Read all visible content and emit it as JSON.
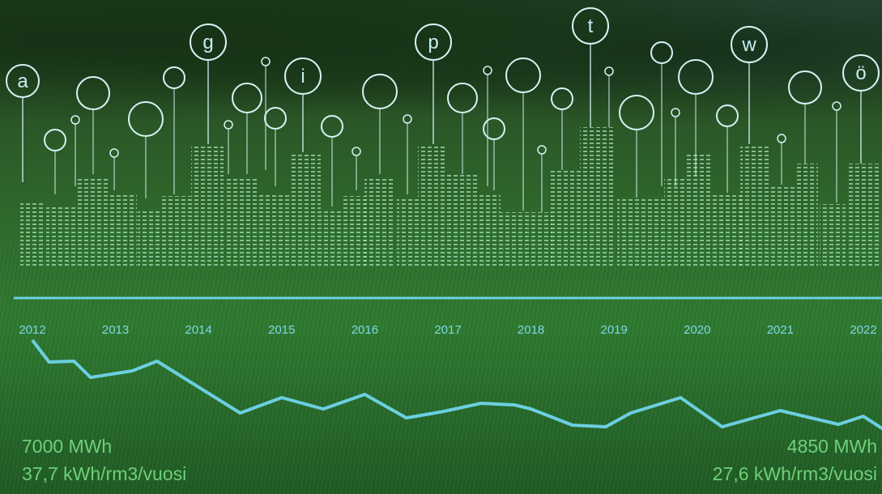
{
  "chart_data": {
    "type": "line",
    "title": "",
    "xlabel": "",
    "ylabel": "",
    "x": [
      2012,
      2012.2,
      2012.5,
      2012.7,
      2013.2,
      2013.5,
      2014.5,
      2015.0,
      2015.5,
      2016.0,
      2016.5,
      2016.95,
      2017.4,
      2017.8,
      2018.0,
      2018.5,
      2018.9,
      2019.2,
      2019.8,
      2020.3,
      2021.0,
      2021.7,
      2022.0,
      2022.3
    ],
    "values": [
      420,
      447,
      446,
      466,
      458,
      446,
      510,
      491,
      505,
      487,
      516,
      508,
      498,
      500,
      505,
      525,
      527,
      510,
      491,
      527,
      507,
      524,
      514,
      534
    ],
    "tick_labels": [
      "2012",
      "2013",
      "2014",
      "2015",
      "2016",
      "2017",
      "2018",
      "2019",
      "2020",
      "2021",
      "2022"
    ],
    "value_note": "relative trend position (unitless)",
    "annotations": {
      "start_energy": "7000 MWh",
      "start_intensity": "37,7 kWh/rm3/vuosi",
      "end_energy": "4850 MWh",
      "end_intensity": "27,6 kWh/rm3/vuosi"
    }
  },
  "pins": [
    {
      "letter": "a"
    },
    {
      "letter": "g"
    },
    {
      "letter": "i"
    },
    {
      "letter": "p"
    },
    {
      "letter": "t"
    },
    {
      "letter": "w"
    },
    {
      "letter": "ö"
    }
  ],
  "colors": {
    "line": "#6ccfe0",
    "axis": "#6ccfe0",
    "tick_text": "#7fd7e6",
    "stat_text": "#6fd07a",
    "building": "#8fe0b8",
    "pin": "#d6f3f4"
  }
}
